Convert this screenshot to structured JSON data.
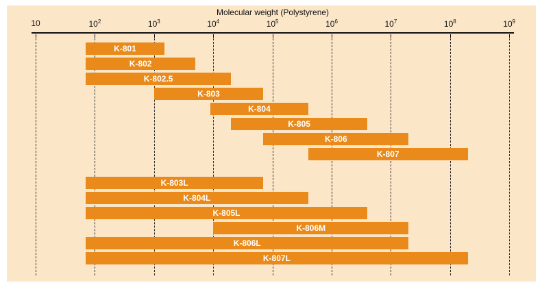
{
  "title": "Molecular weight (Polystyrene)",
  "colors": {
    "page": "#ffffff",
    "background": "#fbe6c8",
    "bar": "#e98a1b",
    "bar_label": "#ffffff",
    "text": "#111111",
    "axis": "#111111",
    "grid": "#2b2b2b"
  },
  "chart_data": {
    "type": "bar",
    "subtype": "horizontal-log-range-bars",
    "title": "Molecular weight (Polystyrene)",
    "legend": null,
    "x_axis": {
      "label": "Molecular weight (Polystyrene)",
      "scale": "log10",
      "range": [
        10,
        1000000000
      ],
      "gridlines": "dashed-vertical",
      "ticks": [
        {
          "base": "10",
          "exp": "",
          "value": 10
        },
        {
          "base": "10",
          "exp": "2",
          "value": 100
        },
        {
          "base": "10",
          "exp": "3",
          "value": 1000
        },
        {
          "base": "10",
          "exp": "4",
          "value": 10000
        },
        {
          "base": "10",
          "exp": "5",
          "value": 100000
        },
        {
          "base": "10",
          "exp": "6",
          "value": 1000000
        },
        {
          "base": "10",
          "exp": "7",
          "value": 10000000
        },
        {
          "base": "10",
          "exp": "8",
          "value": 100000000
        },
        {
          "base": "10",
          "exp": "9",
          "value": 1000000000
        }
      ]
    },
    "bars": [
      {
        "label": "K-801",
        "min": 70,
        "max": 1500,
        "group": 1
      },
      {
        "label": "K-802",
        "min": 70,
        "max": 5000,
        "group": 1
      },
      {
        "label": "K-802.5",
        "min": 70,
        "max": 20000,
        "group": 1
      },
      {
        "label": "K-803",
        "min": 1000,
        "max": 70000,
        "group": 1
      },
      {
        "label": "K-804",
        "min": 9000,
        "max": 400000,
        "group": 1
      },
      {
        "label": "K-805",
        "min": 20000,
        "max": 4000000,
        "group": 1
      },
      {
        "label": "K-806",
        "min": 70000,
        "max": 20000000,
        "group": 1
      },
      {
        "label": "K-807",
        "min": 400000,
        "max": 200000000,
        "group": 1
      },
      {
        "label": "K-803L",
        "min": 70,
        "max": 70000,
        "group": 2
      },
      {
        "label": "K-804L",
        "min": 70,
        "max": 400000,
        "group": 2
      },
      {
        "label": "K-805L",
        "min": 70,
        "max": 4000000,
        "group": 2
      },
      {
        "label": "K-806M",
        "min": 10000,
        "max": 20000000,
        "group": 2
      },
      {
        "label": "K-806L",
        "min": 70,
        "max": 20000000,
        "group": 2
      },
      {
        "label": "K-807L",
        "min": 70,
        "max": 200000000,
        "group": 2
      }
    ]
  }
}
